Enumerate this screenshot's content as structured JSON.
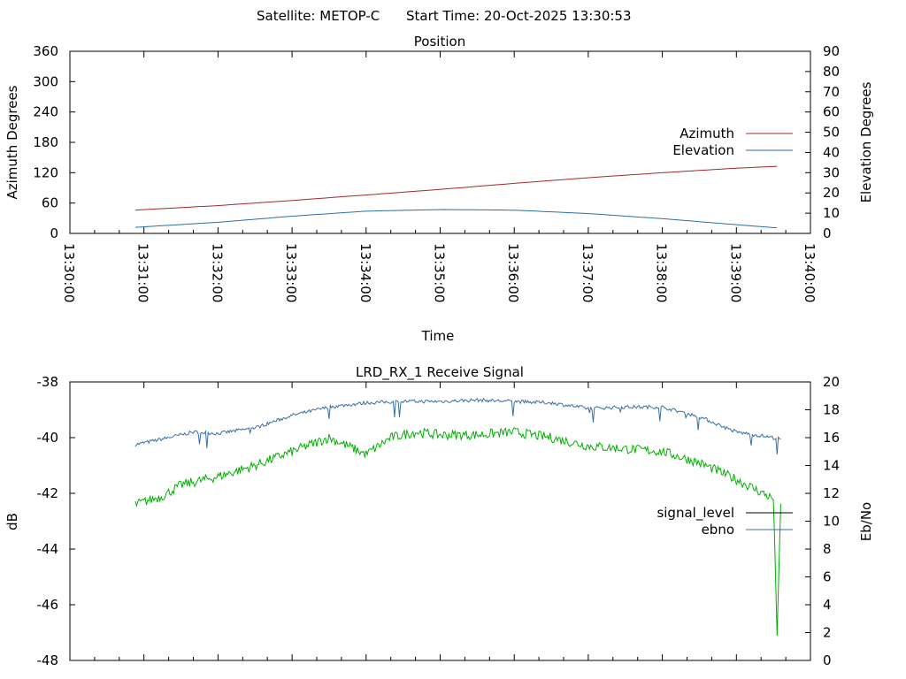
{
  "header": {
    "satellite_label": "Satellite: METOP-C",
    "start_time_label": "Start Time: 20-Oct-2025 13:30:53"
  },
  "colors": {
    "azimuth": "#a52a2a",
    "elevation": "#2f6ea5",
    "signal_level": "#00b000",
    "ebno": "#3a6ea5",
    "signal_level_legend": "#000000",
    "axis": "#000000",
    "background": "#ffffff"
  },
  "chart_data": [
    {
      "id": "position",
      "type": "line",
      "title": "Position",
      "xlabel": "Time",
      "ylabel": "Azimuth Degrees",
      "y2label": "Elevation Degrees",
      "x_range": [
        "13:30:00",
        "13:40:00"
      ],
      "x_ticks": [
        "13:30:00",
        "13:31:00",
        "13:32:00",
        "13:33:00",
        "13:34:00",
        "13:35:00",
        "13:36:00",
        "13:37:00",
        "13:38:00",
        "13:39:00",
        "13:40:00"
      ],
      "ylim": [
        0,
        360
      ],
      "y_ticks": [
        0,
        60,
        120,
        180,
        240,
        300,
        360
      ],
      "y2lim": [
        0,
        90
      ],
      "y2_ticks": [
        0,
        10,
        20,
        30,
        40,
        50,
        60,
        70,
        80,
        90
      ],
      "legend_position": "right",
      "grid": false,
      "series": [
        {
          "name": "Azimuth",
          "axis": "y1",
          "x": [
            "13:30:53",
            "13:32:00",
            "13:33:00",
            "13:34:00",
            "13:35:00",
            "13:36:00",
            "13:37:00",
            "13:38:00",
            "13:39:00",
            "13:39:36"
          ],
          "values": [
            46,
            55,
            65,
            76,
            87,
            99,
            110,
            120,
            129,
            133
          ]
        },
        {
          "name": "Elevation",
          "axis": "y2",
          "x": [
            "13:30:53",
            "13:32:00",
            "13:33:00",
            "13:34:00",
            "13:35:00",
            "13:36:00",
            "13:37:00",
            "13:38:00",
            "13:39:00",
            "13:39:36"
          ],
          "values": [
            3,
            5.5,
            8.5,
            11,
            11.8,
            11.5,
            9.8,
            7.3,
            4.3,
            2.6
          ]
        }
      ]
    },
    {
      "id": "receive_signal",
      "type": "line",
      "title": "LRD_RX_1 Receive Signal",
      "ylabel": "dB",
      "y2label": "Eb/No",
      "x_range": [
        "13:30:00",
        "13:40:00"
      ],
      "ylim": [
        -48,
        -38
      ],
      "y_ticks": [
        -48,
        -46,
        -44,
        -42,
        -40,
        -38
      ],
      "y2lim": [
        0,
        20
      ],
      "y2_ticks": [
        0,
        2,
        4,
        6,
        8,
        10,
        12,
        14,
        16,
        18,
        20
      ],
      "legend_position": "right",
      "grid": false,
      "series": [
        {
          "name": "signal_level",
          "axis": "y1",
          "x": [
            "13:30:53",
            "13:31:15",
            "13:31:30",
            "13:32:00",
            "13:32:30",
            "13:33:00",
            "13:33:30",
            "13:34:00",
            "13:34:20",
            "13:34:40",
            "13:35:00",
            "13:35:30",
            "13:36:00",
            "13:36:30",
            "13:37:00",
            "13:37:30",
            "13:38:00",
            "13:38:30",
            "13:39:00",
            "13:39:30",
            "13:39:33",
            "13:39:36"
          ],
          "values": [
            -42.4,
            -42.1,
            -41.7,
            -41.4,
            -41.0,
            -40.5,
            -40.0,
            -40.6,
            -40.0,
            -39.8,
            -39.9,
            -39.9,
            -39.8,
            -40.0,
            -40.3,
            -40.4,
            -40.5,
            -40.9,
            -41.5,
            -42.2,
            -47.0,
            -42.5
          ]
        },
        {
          "name": "ebno",
          "axis": "y2",
          "x": [
            "13:30:53",
            "13:31:20",
            "13:31:40",
            "13:32:00",
            "13:32:30",
            "13:33:00",
            "13:33:30",
            "13:34:00",
            "13:34:30",
            "13:35:00",
            "13:35:30",
            "13:36:00",
            "13:36:30",
            "13:37:00",
            "13:37:30",
            "13:38:00",
            "13:38:30",
            "13:39:00",
            "13:39:30",
            "13:39:36"
          ],
          "values": [
            15.5,
            16.0,
            16.4,
            16.3,
            16.7,
            17.6,
            18.2,
            18.5,
            18.6,
            18.6,
            18.7,
            18.6,
            18.5,
            18.1,
            18.2,
            18.2,
            17.5,
            16.4,
            16.0,
            15.9
          ]
        }
      ]
    }
  ]
}
